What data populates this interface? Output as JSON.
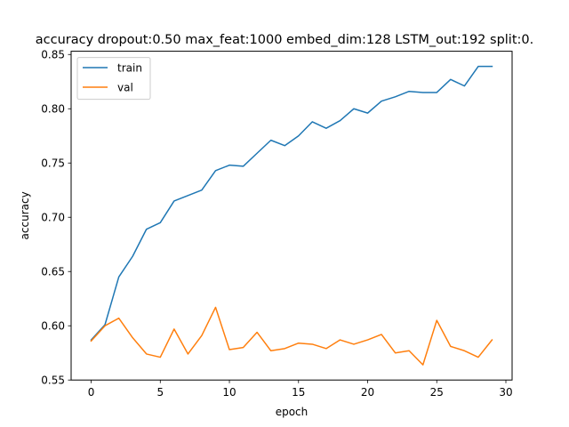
{
  "chart_data": {
    "type": "line",
    "title": "accuracy dropout:0.50 max_feat:1000 embed_dim:128 LSTM_out:192 split:0.",
    "xlabel": "epoch",
    "ylabel": "accuracy",
    "xlim": [
      -1.45,
      30.45
    ],
    "ylim": [
      0.55,
      0.853
    ],
    "xticks": [
      0,
      5,
      10,
      15,
      20,
      25,
      30
    ],
    "yticks": [
      0.55,
      0.6,
      0.65,
      0.7,
      0.75,
      0.8,
      0.85
    ],
    "xtick_labels": [
      "0",
      "5",
      "10",
      "15",
      "20",
      "25",
      "30"
    ],
    "ytick_labels": [
      "0.55",
      "0.60",
      "0.65",
      "0.70",
      "0.75",
      "0.80",
      "0.85"
    ],
    "grid": false,
    "legend_position": "top-left",
    "x": [
      0,
      1,
      2,
      3,
      4,
      5,
      6,
      7,
      8,
      9,
      10,
      11,
      12,
      13,
      14,
      15,
      16,
      17,
      18,
      19,
      20,
      21,
      22,
      23,
      24,
      25,
      26,
      27,
      28,
      29
    ],
    "series": [
      {
        "name": "train",
        "color": "#1f77b4",
        "values": [
          0.587,
          0.601,
          0.645,
          0.664,
          0.689,
          0.695,
          0.715,
          0.72,
          0.725,
          0.743,
          0.748,
          0.747,
          0.759,
          0.771,
          0.766,
          0.775,
          0.788,
          0.782,
          0.789,
          0.8,
          0.796,
          0.807,
          0.811,
          0.816,
          0.815,
          0.815,
          0.827,
          0.821,
          0.839,
          0.839
        ]
      },
      {
        "name": "val",
        "color": "#ff7f0e",
        "values": [
          0.586,
          0.6,
          0.607,
          0.589,
          0.574,
          0.571,
          0.597,
          0.574,
          0.591,
          0.617,
          0.578,
          0.58,
          0.594,
          0.577,
          0.579,
          0.584,
          0.583,
          0.579,
          0.587,
          0.583,
          0.587,
          0.592,
          0.575,
          0.577,
          0.564,
          0.605,
          0.581,
          0.577,
          0.571,
          0.587
        ]
      }
    ]
  }
}
